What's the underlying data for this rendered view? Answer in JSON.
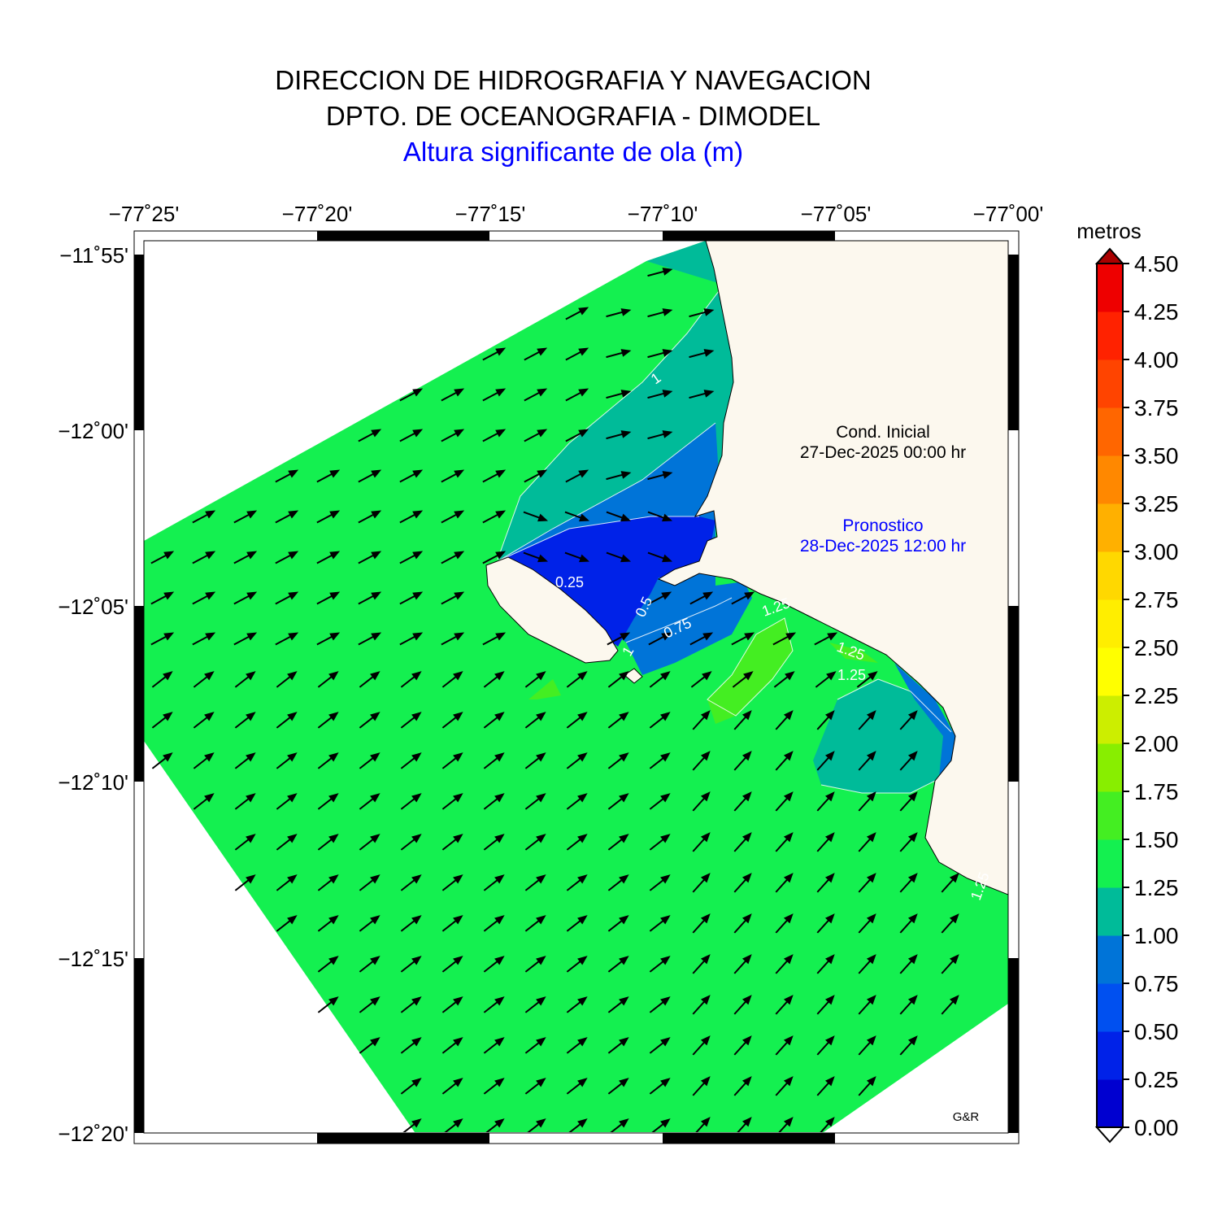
{
  "header": {
    "line1": "DIRECCION DE HIDROGRAFIA Y NAVEGACION",
    "line2": "DPTO. DE OCEANOGRAFIA - DIMODEL",
    "line3": "Altura significante de ola (m)"
  },
  "map": {
    "lon_labels": [
      "−77˚25'",
      "−77˚20'",
      "−77˚15'",
      "−77˚10'",
      "−77˚05'",
      "−77˚00'"
    ],
    "lat_labels": [
      "−11˚55'",
      "−12˚00'",
      "−12˚05'",
      "−12˚10'",
      "−12˚15'",
      "−12˚20'"
    ],
    "contour_labels": [
      "1",
      "0.25",
      "0.5",
      "0.75",
      "1",
      "1.25",
      "1.25",
      "1.25",
      "1.25"
    ],
    "land_color": "#fcf8ee",
    "arrow_color": "#000000"
  },
  "annotations": {
    "initial_title": "Cond. Inicial",
    "initial_date": "27-Dec-2025 00:00 hr",
    "forecast_title": "Pronostico",
    "forecast_date": "28-Dec-2025 12:00 hr",
    "credit": "G&R"
  },
  "colorbar": {
    "unit": "metros",
    "ticks": [
      "4.50",
      "4.25",
      "4.00",
      "3.75",
      "3.50",
      "3.25",
      "3.00",
      "2.75",
      "2.50",
      "2.25",
      "2.00",
      "1.75",
      "1.50",
      "1.25",
      "1.00",
      "0.75",
      "0.50",
      "0.25",
      "0.00"
    ],
    "colors": [
      "#0000d0",
      "#0022e8",
      "#0050f0",
      "#0074d8",
      "#00bb99",
      "#14f050",
      "#44ee22",
      "#88ee00",
      "#ccee00",
      "#ffff00",
      "#ffee00",
      "#ffd800",
      "#ffb000",
      "#ff8800",
      "#ff6600",
      "#ff4400",
      "#ff2200",
      "#ee0000",
      "#cc0000"
    ],
    "top_color": "#aa0000"
  }
}
